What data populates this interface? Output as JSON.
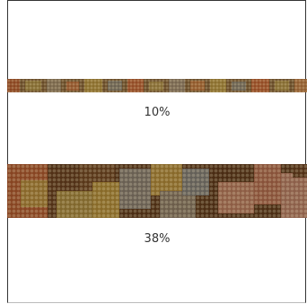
{
  "items": [
    {
      "label": "10%"
    },
    {
      "label": "38%"
    }
  ]
}
